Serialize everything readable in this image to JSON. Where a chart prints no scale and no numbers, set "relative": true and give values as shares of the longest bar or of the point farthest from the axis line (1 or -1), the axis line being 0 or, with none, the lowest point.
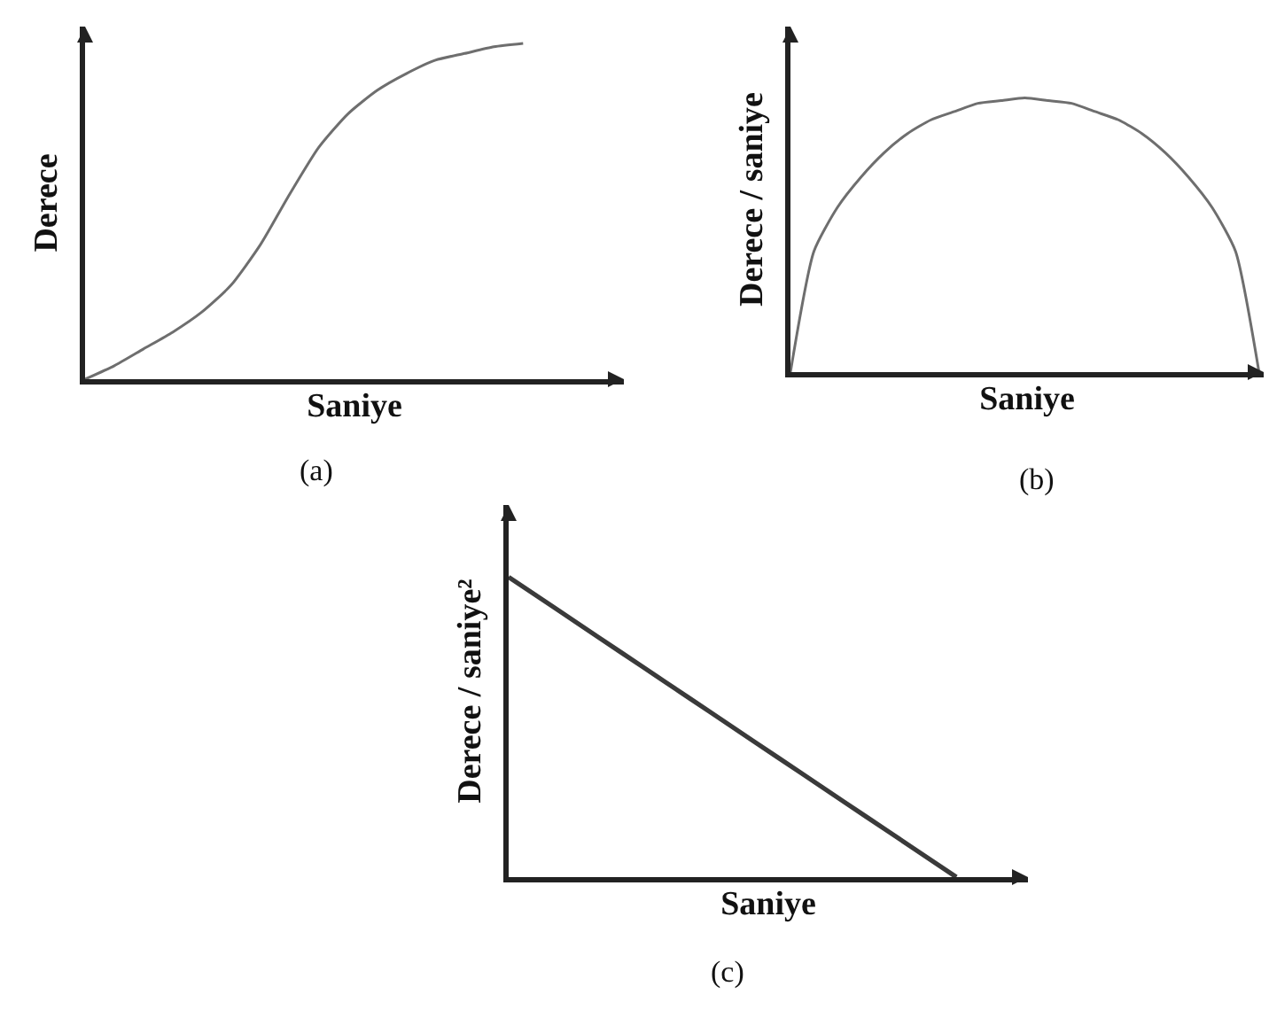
{
  "chart_data": [
    {
      "type": "line",
      "relative": true,
      "tick_labels": false,
      "xlabel": "Saniye",
      "ylabel": "Derece",
      "annotations": [
        "(a)"
      ],
      "categories": [
        null,
        null,
        null,
        null,
        null,
        null,
        null,
        null,
        null,
        null,
        null,
        null,
        null,
        null,
        null,
        null
      ],
      "series": [
        {
          "color": "#6e6e6e",
          "values": [
            0,
            0.04,
            0.09,
            0.14,
            0.2,
            0.28,
            0.4,
            0.55,
            0.69,
            0.79,
            0.86,
            0.91,
            0.95,
            0.97,
            0.99,
            1
          ]
        }
      ]
    },
    {
      "type": "line",
      "relative": true,
      "tick_labels": false,
      "xlabel": "Saniye",
      "ylabel": "Derece / saniye",
      "annotations": [
        "(b)"
      ],
      "categories": [
        null,
        null,
        null,
        null,
        null,
        null,
        null,
        null,
        null,
        null,
        null,
        null,
        null,
        null,
        null,
        null,
        null,
        null,
        null,
        null,
        null
      ],
      "series": [
        {
          "color": "#6e6e6e",
          "values": [
            0,
            0.44,
            0.6,
            0.71,
            0.8,
            0.87,
            0.92,
            0.95,
            0.98,
            0.99,
            1,
            0.99,
            0.98,
            0.95,
            0.92,
            0.87,
            0.8,
            0.71,
            0.6,
            0.44,
            0
          ]
        }
      ]
    },
    {
      "type": "line",
      "relative": true,
      "tick_labels": false,
      "xlabel": "Saniye",
      "ylabel": "Derece / saniye²",
      "annotations": [
        "(c)"
      ],
      "categories": [
        null,
        null,
        null,
        null,
        null,
        null,
        null,
        null,
        null,
        null,
        null
      ],
      "series": [
        {
          "color": "#3a3a3a",
          "values": [
            1,
            0.9,
            0.8,
            0.7,
            0.6,
            0.5,
            0.4,
            0.3,
            0.2,
            0.1,
            0
          ]
        }
      ]
    }
  ]
}
